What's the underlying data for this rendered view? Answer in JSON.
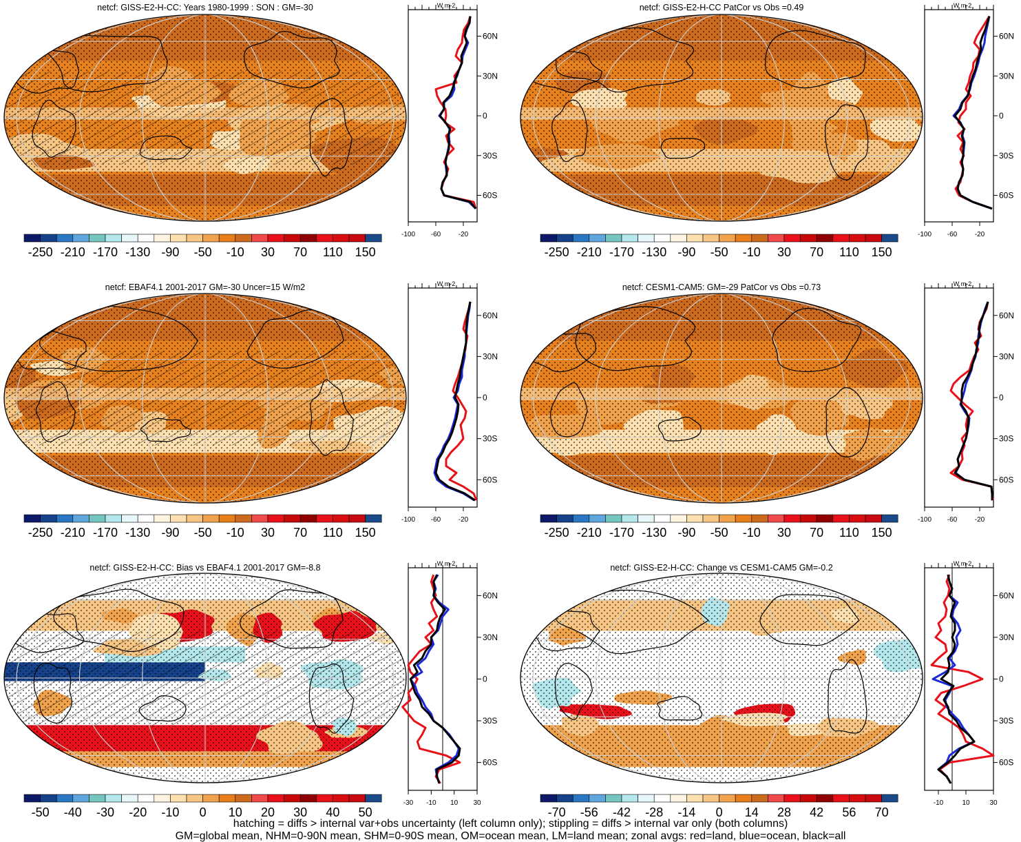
{
  "footer": {
    "line1": "hatching = diffs > internal var+obs uncertainty (left column only); stippling = diffs > internal var only (both columns)",
    "line2": "GM=global mean, NHM=0-90N mean, SHM=0-90S mean, OM=ocean mean, LM=land mean; zonal avgs: red=land, blue=ocean, black=all"
  },
  "colors": {
    "land": "#e8111a",
    "ocean": "#1a2ad8",
    "all": "#000000",
    "grid": "#cfcfcf",
    "ocean_deep": "#d7701e",
    "palette": [
      "#0d1a6a",
      "#16428c",
      "#2a78c4",
      "#5fa6dc",
      "#76c6c0",
      "#b5e8ec",
      "#e8f8fa",
      "#ffffff",
      "#fff4e0",
      "#fde0b0",
      "#f7c684",
      "#f0a24c",
      "#e87e1a",
      "#cc6a1e",
      "#f04a4a",
      "#e8111a",
      "#c80808",
      "#900000",
      "#e8111a",
      "#d80d10",
      "#c80a10",
      "#1a4a8a"
    ]
  },
  "chart_data": [
    {
      "type": "heatmap",
      "title": "netcf: GISS-E2-H-CC: Years 1980-1999 : SON : GM=-30",
      "colorbar_ticks": [
        "-250",
        "-210",
        "-170",
        "-130",
        "-90",
        "-50",
        "-10",
        "30",
        "70",
        "110",
        "150"
      ],
      "zonal": {
        "unit": "W m-2",
        "x_ticks": [
          "-100",
          "-60",
          "-20"
        ],
        "xlim": [
          -100,
          0
        ],
        "lat_labels": [
          "60N",
          "30N",
          "0",
          "30S",
          "60S"
        ],
        "lat": [
          -70,
          -65,
          -60,
          -55,
          -50,
          -45,
          -40,
          -35,
          -30,
          -25,
          -20,
          -15,
          -10,
          -5,
          0,
          5,
          10,
          15,
          20,
          25,
          30,
          35,
          40,
          45,
          50,
          55,
          60,
          65,
          70,
          75
        ],
        "series": [
          {
            "name": "land",
            "values": [
              -2,
              -5,
              -48,
              -52,
              -49,
              -45,
              -42,
              -48,
              -44,
              -34,
              -42,
              -45,
              -33,
              -47,
              -45,
              -46,
              -53,
              -58,
              -60,
              -30,
              -33,
              -26,
              -22,
              -31,
              -28,
              -22,
              -21,
              -19,
              -13,
              -10
            ]
          },
          {
            "name": "ocean",
            "values": [
              -2,
              -12,
              -48,
              -52,
              -50,
              -44,
              -45,
              -46,
              -44,
              -42,
              -40,
              -41,
              -40,
              -46,
              -55,
              -48,
              -48,
              -37,
              -33,
              -34,
              -29,
              -26,
              -22,
              -21,
              -17,
              -13,
              -18,
              -15,
              -11,
              -10
            ]
          },
          {
            "name": "all",
            "values": [
              -2,
              -10,
              -48,
              -52,
              -50,
              -44,
              -44,
              -46,
              -44,
              -41,
              -41,
              -42,
              -39,
              -46,
              -54,
              -48,
              -49,
              -40,
              -36,
              -33,
              -30,
              -26,
              -22,
              -23,
              -19,
              -15,
              -18,
              -16,
              -11,
              -10
            ]
          }
        ]
      }
    },
    {
      "type": "heatmap",
      "title": "netcf: GISS-E2-H-CC PatCor vs Obs =0.49",
      "colorbar_ticks": [
        "-250",
        "-210",
        "-170",
        "-130",
        "-90",
        "-50",
        "-10",
        "30",
        "70",
        "110",
        "150"
      ],
      "zonal": {
        "unit": "W m-2",
        "x_ticks": [
          "-100",
          "-60",
          "-20"
        ],
        "xlim": [
          -100,
          0
        ],
        "lat_labels": [
          "60N",
          "30N",
          "0",
          "30S",
          "60S"
        ],
        "lat": [
          -70,
          -65,
          -60,
          -55,
          -50,
          -45,
          -40,
          -35,
          -30,
          -25,
          -20,
          -15,
          -10,
          -5,
          0,
          5,
          10,
          15,
          20,
          25,
          30,
          35,
          40,
          45,
          50,
          55,
          60,
          65,
          70,
          75
        ],
        "series": [
          {
            "name": "land",
            "values": [
              -2,
              -30,
              -50,
              -55,
              -48,
              -46,
              -44,
              -48,
              -43,
              -48,
              -44,
              -52,
              -42,
              -51,
              -48,
              -40,
              -40,
              -33,
              -40,
              -36,
              -34,
              -30,
              -29,
              -22,
              -20,
              -28,
              -24,
              -18,
              -12,
              -6
            ]
          },
          {
            "name": "ocean",
            "values": [
              -2,
              -30,
              -48,
              -52,
              -50,
              -45,
              -44,
              -46,
              -44,
              -43,
              -42,
              -45,
              -43,
              -48,
              -58,
              -50,
              -46,
              -38,
              -34,
              -32,
              -28,
              -25,
              -22,
              -20,
              -16,
              -13,
              -12,
              -10,
              -8,
              -6
            ]
          },
          {
            "name": "all",
            "values": [
              -2,
              -30,
              -48,
              -52,
              -50,
              -45,
              -44,
              -46,
              -44,
              -44,
              -43,
              -46,
              -43,
              -49,
              -56,
              -48,
              -45,
              -37,
              -35,
              -33,
              -30,
              -26,
              -24,
              -21,
              -18,
              -19,
              -16,
              -12,
              -9,
              -6
            ]
          }
        ]
      }
    },
    {
      "type": "heatmap",
      "title": "netcf: EBAF4.1 2001-2017 GM=-30 Uncer=15 W/m2",
      "colorbar_ticks": [
        "-250",
        "-210",
        "-170",
        "-130",
        "-90",
        "-50",
        "-10",
        "30",
        "70",
        "110",
        "150"
      ],
      "zonal": {
        "unit": "W m-2",
        "x_ticks": [
          "-100",
          "-60",
          "-20"
        ],
        "xlim": [
          -100,
          0
        ],
        "lat_labels": [
          "60N",
          "30N",
          "0",
          "30S",
          "60S"
        ],
        "lat": [
          -75,
          -70,
          -65,
          -60,
          -55,
          -50,
          -45,
          -40,
          -35,
          -30,
          -25,
          -20,
          -15,
          -10,
          -5,
          0,
          5,
          10,
          15,
          20,
          25,
          30,
          35,
          40,
          45,
          50,
          55,
          60,
          65,
          70
        ],
        "series": [
          {
            "name": "land",
            "values": [
              -1,
              -5,
              -20,
              -40,
              -30,
              -45,
              -45,
              -38,
              -28,
              -20,
              -22,
              -24,
              -18,
              -16,
              -22,
              -28,
              -35,
              -32,
              -28,
              -25,
              -22,
              -20,
              -17,
              -16,
              -14,
              -20,
              -18,
              -15,
              -12,
              -10
            ]
          },
          {
            "name": "ocean",
            "values": [
              -4,
              -20,
              -45,
              -58,
              -62,
              -60,
              -58,
              -52,
              -48,
              -42,
              -38,
              -35,
              -32,
              -30,
              -28,
              -34,
              -28,
              -26,
              -22,
              -22,
              -20,
              -18,
              -18,
              -16,
              -16,
              -15,
              -14,
              -13,
              -11,
              -10
            ]
          },
          {
            "name": "all",
            "values": [
              -3,
              -18,
              -42,
              -55,
              -60,
              -58,
              -56,
              -50,
              -46,
              -40,
              -36,
              -33,
              -30,
              -28,
              -27,
              -32,
              -30,
              -28,
              -25,
              -24,
              -22,
              -20,
              -18,
              -16,
              -16,
              -16,
              -15,
              -14,
              -12,
              -10
            ]
          }
        ]
      }
    },
    {
      "type": "heatmap",
      "title": "netcf: CESM1-CAM5: GM=-29 PatCor vs Obs =0.73",
      "colorbar_ticks": [
        "-250",
        "-210",
        "-170",
        "-130",
        "-90",
        "-50",
        "-10",
        "30",
        "70",
        "110",
        "150"
      ],
      "zonal": {
        "unit": "W m-2",
        "x_ticks": [
          "-100",
          "-60",
          "-20"
        ],
        "xlim": [
          -100,
          0
        ],
        "lat_labels": [
          "60N",
          "30N",
          "0",
          "30S",
          "60S"
        ],
        "lat": [
          -75,
          -70,
          -65,
          -60,
          -55,
          -50,
          -45,
          -40,
          -35,
          -30,
          -25,
          -20,
          -15,
          -10,
          -5,
          0,
          5,
          10,
          15,
          20,
          25,
          30,
          35,
          40,
          45,
          50,
          55,
          60,
          65,
          70
        ],
        "series": [
          {
            "name": "land",
            "values": [
              -1,
              -2,
              -3,
              -45,
              -62,
              -50,
              -45,
              -46,
              -42,
              -46,
              -38,
              -40,
              -38,
              -30,
              -42,
              -52,
              -62,
              -58,
              -48,
              -35,
              -32,
              -28,
              -22,
              -27,
              -18,
              -22,
              -20,
              -15,
              -10,
              -8
            ]
          },
          {
            "name": "ocean",
            "values": [
              -2,
              -2,
              -3,
              -42,
              -55,
              -50,
              -52,
              -48,
              -44,
              -40,
              -38,
              -36,
              -35,
              -42,
              -48,
              -45,
              -42,
              -40,
              -36,
              -32,
              -30,
              -26,
              -25,
              -22,
              -22,
              -20,
              -18,
              -15,
              -12,
              -8
            ]
          },
          {
            "name": "all",
            "values": [
              -2,
              -2,
              -3,
              -42,
              -56,
              -50,
              -52,
              -48,
              -44,
              -40,
              -38,
              -37,
              -36,
              -40,
              -47,
              -46,
              -46,
              -44,
              -38,
              -33,
              -30,
              -27,
              -24,
              -24,
              -20,
              -21,
              -19,
              -15,
              -11,
              -8
            ]
          }
        ]
      }
    },
    {
      "type": "heatmap",
      "title": "netcf: GISS-E2-H-CC: Bias vs EBAF4.1 2001-2017  GM=-8.8",
      "colorbar_ticks": [
        "-50",
        "-40",
        "-30",
        "-20",
        "-10",
        "0",
        "10",
        "20",
        "30",
        "40",
        "50"
      ],
      "zonal": {
        "unit": "W m-2",
        "x_ticks": [
          "-30",
          "-10",
          "10",
          "30"
        ],
        "xlim": [
          -30,
          30
        ],
        "zero_line": 0,
        "lat_labels": [
          "60N",
          "30N",
          "0",
          "30S",
          "60S"
        ],
        "lat": [
          -75,
          -70,
          -65,
          -60,
          -55,
          -50,
          -45,
          -40,
          -35,
          -30,
          -25,
          -20,
          -15,
          -10,
          -5,
          0,
          5,
          10,
          15,
          20,
          25,
          30,
          35,
          40,
          45,
          50,
          55,
          60,
          65,
          70,
          75
        ],
        "series": [
          {
            "name": "land",
            "values": [
              -2,
              -6,
              -3,
              15,
              3,
              -20,
              -22,
              -18,
              -15,
              -25,
              -30,
              -35,
              -28,
              -30,
              -25,
              -22,
              -28,
              -30,
              -25,
              -20,
              -10,
              -15,
              -8,
              -12,
              -5,
              -8,
              -10,
              -6,
              -8,
              -10,
              -8
            ]
          },
          {
            "name": "ocean",
            "values": [
              -3,
              -5,
              -6,
              5,
              12,
              14,
              10,
              6,
              0,
              -8,
              -10,
              -15,
              -18,
              -22,
              -24,
              -28,
              -18,
              -22,
              -15,
              -12,
              -8,
              -10,
              -4,
              -2,
              0,
              5,
              -3,
              -8,
              -6,
              -8,
              -4
            ]
          },
          {
            "name": "all",
            "values": [
              -3,
              -5,
              -5,
              8,
              14,
              15,
              10,
              5,
              0,
              -8,
              -12,
              -18,
              -20,
              -24,
              -26,
              -28,
              -22,
              -25,
              -18,
              -15,
              -10,
              -10,
              -5,
              -4,
              -2,
              2,
              -4,
              -8,
              -7,
              -8,
              -5
            ]
          }
        ]
      }
    },
    {
      "type": "heatmap",
      "title": "netcf: GISS-E2-H-CC: Change vs CESM1-CAM5 GM=-0.2",
      "colorbar_ticks": [
        "-70",
        "-56",
        "-42",
        "-28",
        "-14",
        "0",
        "14",
        "28",
        "42",
        "56",
        "70"
      ],
      "zonal": {
        "unit": "W m-2",
        "x_ticks": [
          "-10",
          "10",
          "30"
        ],
        "xlim": [
          -20,
          30
        ],
        "zero_line": 0,
        "lat_labels": [
          "60N",
          "30N",
          "0",
          "30S",
          "60S"
        ],
        "lat": [
          -75,
          -70,
          -65,
          -60,
          -55,
          -50,
          -45,
          -40,
          -35,
          -30,
          -25,
          -20,
          -15,
          -10,
          -5,
          0,
          5,
          10,
          15,
          20,
          25,
          30,
          35,
          40,
          45,
          50,
          55,
          60,
          65,
          70,
          75
        ],
        "series": [
          {
            "name": "land",
            "values": [
              -1,
              -4,
              -9,
              -2,
              30,
              22,
              10,
              8,
              5,
              -2,
              -10,
              -5,
              -12,
              -8,
              8,
              22,
              12,
              -15,
              -10,
              -4,
              -5,
              -12,
              -8,
              -10,
              -5,
              -4,
              -6,
              -3,
              -2,
              -4,
              -2
            ]
          },
          {
            "name": "ocean",
            "values": [
              -1,
              -4,
              -10,
              -4,
              -2,
              5,
              16,
              12,
              8,
              5,
              0,
              -4,
              -5,
              -2,
              0,
              -14,
              -5,
              2,
              -2,
              2,
              4,
              3,
              6,
              4,
              0,
              1,
              4,
              -2,
              0,
              -2,
              -3
            ]
          },
          {
            "name": "all",
            "values": [
              -1,
              -4,
              -10,
              -3,
              2,
              6,
              16,
              12,
              6,
              3,
              -2,
              -3,
              -6,
              -3,
              1,
              -8,
              -3,
              -2,
              -3,
              1,
              2,
              0,
              2,
              2,
              -1,
              0,
              2,
              -2,
              0,
              -2,
              -3
            ]
          }
        ]
      }
    }
  ]
}
